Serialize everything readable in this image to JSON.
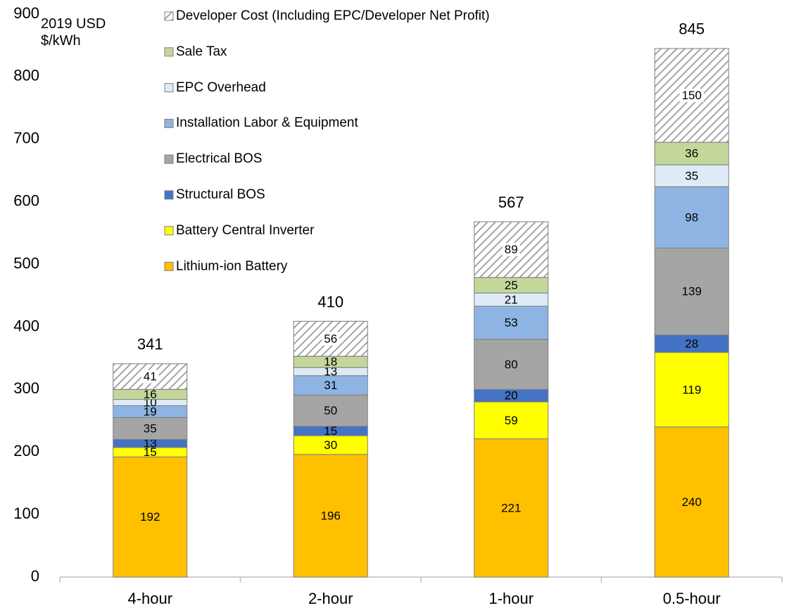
{
  "chart_data": {
    "type": "stacked_bar",
    "y_label": "2019 USD $/kWh",
    "categories": [
      "4-hour",
      "2-hour",
      "1-hour",
      "0.5-hour"
    ],
    "series": [
      {
        "name": "Lithium-ion Battery",
        "color": "#FFC000",
        "values": [
          192,
          196,
          221,
          240
        ]
      },
      {
        "name": "Battery Central Inverter",
        "color": "#FFFF00",
        "values": [
          15,
          30,
          59,
          119
        ]
      },
      {
        "name": "Structural BOS",
        "color": "#4472C4",
        "values": [
          13,
          15,
          20,
          28
        ]
      },
      {
        "name": "Electrical BOS",
        "color": "#A5A5A5",
        "values": [
          35,
          50,
          80,
          139
        ]
      },
      {
        "name": "Installation Labor & Equipment",
        "color": "#8EB4E3",
        "values": [
          19,
          31,
          53,
          98
        ]
      },
      {
        "name": "EPC Overhead",
        "color": "#DEEBF7",
        "values": [
          10,
          13,
          21,
          35
        ]
      },
      {
        "name": "Sale Tax",
        "color": "#C4D79B",
        "values": [
          16,
          18,
          25,
          36
        ]
      },
      {
        "name": "Developer Cost (Including EPC/Developer Net Profit)",
        "color": "hatch",
        "values": [
          41,
          56,
          89,
          150
        ]
      }
    ],
    "totals": [
      341,
      410,
      567,
      845
    ],
    "ylim": [
      0,
      900
    ],
    "yticks": [
      0,
      100,
      200,
      300,
      400,
      500,
      600,
      700,
      800,
      900
    ],
    "grid": false,
    "legend": "top-left"
  }
}
